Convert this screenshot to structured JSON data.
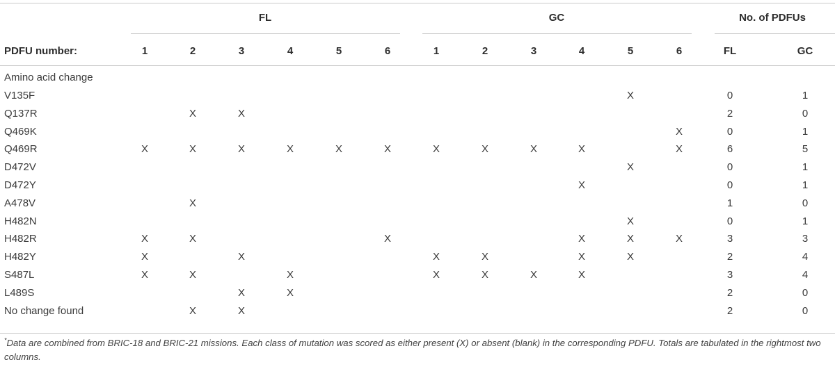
{
  "header": {
    "group_fl": "FL",
    "group_gc": "GC",
    "group_totals": "No. of PDFUs",
    "row_label": "PDFU number:",
    "fl_columns": [
      "1",
      "2",
      "3",
      "4",
      "5",
      "6"
    ],
    "gc_columns": [
      "1",
      "2",
      "3",
      "4",
      "5",
      "6"
    ],
    "total_columns": [
      "FL",
      "GC"
    ]
  },
  "section_label": "Amino acid change",
  "mark_symbol": "X",
  "rows": [
    {
      "label": "V135F",
      "fl": [
        0,
        0,
        0,
        0,
        0,
        0
      ],
      "gc": [
        0,
        0,
        0,
        0,
        1,
        0
      ],
      "totals": [
        "0",
        "1"
      ]
    },
    {
      "label": "Q137R",
      "fl": [
        0,
        1,
        1,
        0,
        0,
        0
      ],
      "gc": [
        0,
        0,
        0,
        0,
        0,
        0
      ],
      "totals": [
        "2",
        "0"
      ]
    },
    {
      "label": "Q469K",
      "fl": [
        0,
        0,
        0,
        0,
        0,
        0
      ],
      "gc": [
        0,
        0,
        0,
        0,
        0,
        1
      ],
      "totals": [
        "0",
        "1"
      ]
    },
    {
      "label": "Q469R",
      "fl": [
        1,
        1,
        1,
        1,
        1,
        1
      ],
      "gc": [
        1,
        1,
        1,
        1,
        0,
        1
      ],
      "totals": [
        "6",
        "5"
      ]
    },
    {
      "label": "D472V",
      "fl": [
        0,
        0,
        0,
        0,
        0,
        0
      ],
      "gc": [
        0,
        0,
        0,
        0,
        1,
        0
      ],
      "totals": [
        "0",
        "1"
      ]
    },
    {
      "label": "D472Y",
      "fl": [
        0,
        0,
        0,
        0,
        0,
        0
      ],
      "gc": [
        0,
        0,
        0,
        1,
        0,
        0
      ],
      "totals": [
        "0",
        "1"
      ]
    },
    {
      "label": "A478V",
      "fl": [
        0,
        1,
        0,
        0,
        0,
        0
      ],
      "gc": [
        0,
        0,
        0,
        0,
        0,
        0
      ],
      "totals": [
        "1",
        "0"
      ]
    },
    {
      "label": "H482N",
      "fl": [
        0,
        0,
        0,
        0,
        0,
        0
      ],
      "gc": [
        0,
        0,
        0,
        0,
        1,
        0
      ],
      "totals": [
        "0",
        "1"
      ]
    },
    {
      "label": "H482R",
      "fl": [
        1,
        1,
        0,
        0,
        0,
        1
      ],
      "gc": [
        0,
        0,
        0,
        1,
        1,
        1
      ],
      "totals": [
        "3",
        "3"
      ]
    },
    {
      "label": "H482Y",
      "fl": [
        1,
        0,
        1,
        0,
        0,
        0
      ],
      "gc": [
        1,
        1,
        0,
        1,
        1,
        0
      ],
      "totals": [
        "2",
        "4"
      ]
    },
    {
      "label": "S487L",
      "fl": [
        1,
        1,
        0,
        1,
        0,
        0
      ],
      "gc": [
        1,
        1,
        1,
        1,
        0,
        0
      ],
      "totals": [
        "3",
        "4"
      ]
    },
    {
      "label": "L489S",
      "fl": [
        0,
        0,
        1,
        1,
        0,
        0
      ],
      "gc": [
        0,
        0,
        0,
        0,
        0,
        0
      ],
      "totals": [
        "2",
        "0"
      ]
    },
    {
      "label": "No change found",
      "fl": [
        0,
        1,
        1,
        0,
        0,
        0
      ],
      "gc": [
        0,
        0,
        0,
        0,
        0,
        0
      ],
      "totals": [
        "2",
        "0"
      ]
    }
  ],
  "footnote": {
    "marker": "*",
    "text": "Data are combined from BRIC-18 and BRIC-21 missions. Each class of mutation was scored as either present (X) or absent (blank) in the corresponding PDFU. Totals are tabulated in the rightmost two columns."
  }
}
